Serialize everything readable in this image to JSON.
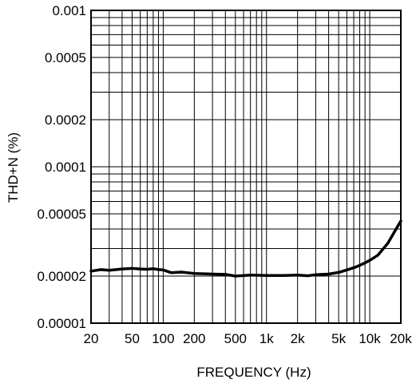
{
  "chart_data": {
    "type": "line",
    "title": "",
    "xlabel": "FREQUENCY (Hz)",
    "ylabel": "THD+N (%)",
    "x_scale": "log",
    "y_scale": "log",
    "xlim": [
      20,
      20000
    ],
    "ylim": [
      1e-05,
      0.001
    ],
    "grid": true,
    "legend": "none",
    "x_ticks": [
      {
        "value": 20,
        "label": "20"
      },
      {
        "value": 50,
        "label": "50"
      },
      {
        "value": 100,
        "label": "100"
      },
      {
        "value": 200,
        "label": "200"
      },
      {
        "value": 500,
        "label": "500"
      },
      {
        "value": 1000,
        "label": "1k"
      },
      {
        "value": 2000,
        "label": "2k"
      },
      {
        "value": 5000,
        "label": "5k"
      },
      {
        "value": 10000,
        "label": "10k"
      },
      {
        "value": 20000,
        "label": "20k"
      }
    ],
    "y_ticks": [
      {
        "value": 0.001,
        "label": "0.001"
      },
      {
        "value": 0.0005,
        "label": "0.0005"
      },
      {
        "value": 0.0002,
        "label": "0.0002"
      },
      {
        "value": 0.0001,
        "label": "0.0001"
      },
      {
        "value": 5e-05,
        "label": "0.00005"
      },
      {
        "value": 2e-05,
        "label": "0.00002"
      },
      {
        "value": 1e-05,
        "label": "0.00001"
      }
    ],
    "series": [
      {
        "color": "#000000",
        "x": [
          20,
          25,
          30,
          40,
          50,
          60,
          70,
          80,
          90,
          100,
          120,
          150,
          200,
          250,
          300,
          400,
          500,
          700,
          1000,
          1500,
          2000,
          2500,
          3000,
          4000,
          5000,
          6000,
          7000,
          8000,
          9000,
          10000,
          12000,
          15000,
          17000,
          20000
        ],
        "y": [
          2.15e-05,
          2.2e-05,
          2.18e-05,
          2.22e-05,
          2.24e-05,
          2.22e-05,
          2.21e-05,
          2.23e-05,
          2.2e-05,
          2.19e-05,
          2.1e-05,
          2.12e-05,
          2.08e-05,
          2.07e-05,
          2.06e-05,
          2.05e-05,
          2e-05,
          2.03e-05,
          2.02e-05,
          2.02e-05,
          2.03e-05,
          2.01e-05,
          2.04e-05,
          2.06e-05,
          2.11e-05,
          2.19e-05,
          2.26e-05,
          2.34e-05,
          2.43e-05,
          2.52e-05,
          2.72e-05,
          3.25e-05,
          3.75e-05,
          4.5e-05
        ]
      }
    ]
  }
}
